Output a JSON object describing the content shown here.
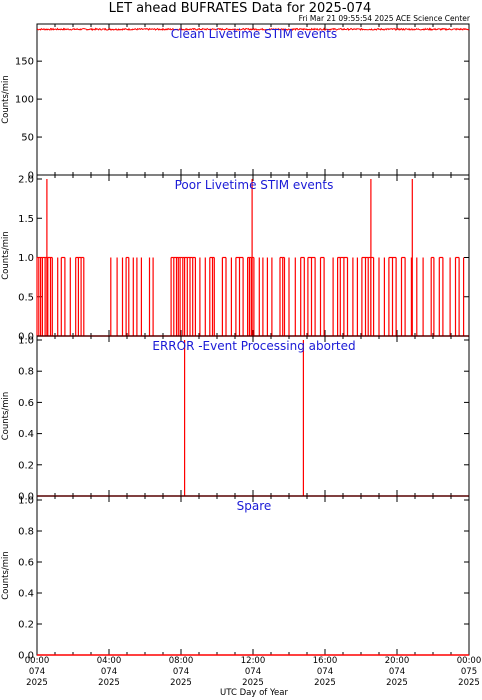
{
  "header": {
    "title": "LET ahead BUFRATES Data for 2025-074",
    "timestamp": "Fri Mar 21 09:55:54 2025 ACE Science Center"
  },
  "x_axis": {
    "label": "UTC Day of Year",
    "ticks": [
      [
        "00:00",
        "074",
        "2025"
      ],
      [
        "04:00",
        "074",
        "2025"
      ],
      [
        "08:00",
        "074",
        "2025"
      ],
      [
        "12:00",
        "074",
        "2025"
      ],
      [
        "16:00",
        "074",
        "2025"
      ],
      [
        "20:00",
        "074",
        "2025"
      ],
      [
        "00:00",
        "075",
        "2025"
      ]
    ]
  },
  "colors": {
    "series": "#ff0000",
    "panel_title": "#1a1ad6",
    "axes": "#000000"
  },
  "chart_data": [
    {
      "type": "line",
      "title": "Clean Livetime STIM events",
      "ylabel": "Counts/min",
      "ylim": [
        0,
        195
      ],
      "yticks": [
        "0",
        "50",
        "100",
        "150"
      ],
      "xlim_hours": [
        0,
        24
      ],
      "baseline": 192,
      "noise": 2,
      "spikes_hours": [],
      "secondary_spikes_hours": []
    },
    {
      "type": "line",
      "title": "Poor Livetime STIM events",
      "ylabel": "Counts/min",
      "ylim": [
        0,
        2
      ],
      "yticks": [
        "0.0",
        "0.5",
        "1.0",
        "1.5",
        "2.0"
      ],
      "xlim_hours": [
        0,
        24
      ],
      "baseline": 0,
      "spikes_hours": [
        0.0,
        0.1,
        0.2,
        0.3,
        0.45,
        0.6,
        0.75,
        0.85,
        1.15,
        1.35,
        1.55,
        1.85,
        2.15,
        2.3,
        2.45,
        2.6,
        4.1,
        4.45,
        4.75,
        4.95,
        5.1,
        5.35,
        5.55,
        5.8,
        6.25,
        6.45,
        7.45,
        7.6,
        7.75,
        7.85,
        7.95,
        8.1,
        8.2,
        8.35,
        8.5,
        8.65,
        8.8,
        9.05,
        9.35,
        9.6,
        9.75,
        9.85,
        10.3,
        10.5,
        10.8,
        11.05,
        11.25,
        11.45,
        11.7,
        11.8,
        11.9,
        12.05,
        12.35,
        12.55,
        12.8,
        13.05,
        13.5,
        13.65,
        13.75,
        14.0,
        14.35,
        14.65,
        14.85,
        15.05,
        15.25,
        15.45,
        15.75,
        15.95,
        16.45,
        16.7,
        16.85,
        17.05,
        17.25,
        17.55,
        17.8,
        18.05,
        18.25,
        18.4,
        18.55,
        18.7,
        19.0,
        19.3,
        19.55,
        19.75,
        19.95,
        20.25,
        20.45,
        20.8,
        21.1,
        21.45,
        21.9,
        22.05,
        22.35,
        22.55,
        22.95,
        23.25,
        23.45,
        23.7
      ],
      "secondary_spikes_hours": [
        0.55,
        11.95,
        18.55,
        20.85
      ],
      "secondary_value": 2
    },
    {
      "type": "line",
      "title": "ERROR -Event Processing aborted",
      "ylabel": "Counts/min",
      "ylim": [
        0,
        1
      ],
      "yticks": [
        "0.0",
        "0.2",
        "0.4",
        "0.6",
        "0.8",
        "1.0"
      ],
      "xlim_hours": [
        0,
        24
      ],
      "baseline": 0,
      "spikes_hours": [
        8.2,
        14.8
      ],
      "secondary_spikes_hours": []
    },
    {
      "type": "line",
      "title": "Spare",
      "ylabel": "Counts/min",
      "ylim": [
        0,
        1
      ],
      "yticks": [
        "0.0",
        "0.2",
        "0.4",
        "0.6",
        "0.8",
        "1.0"
      ],
      "xlim_hours": [
        0,
        24
      ],
      "baseline": 0,
      "spikes_hours": [],
      "secondary_spikes_hours": []
    }
  ]
}
